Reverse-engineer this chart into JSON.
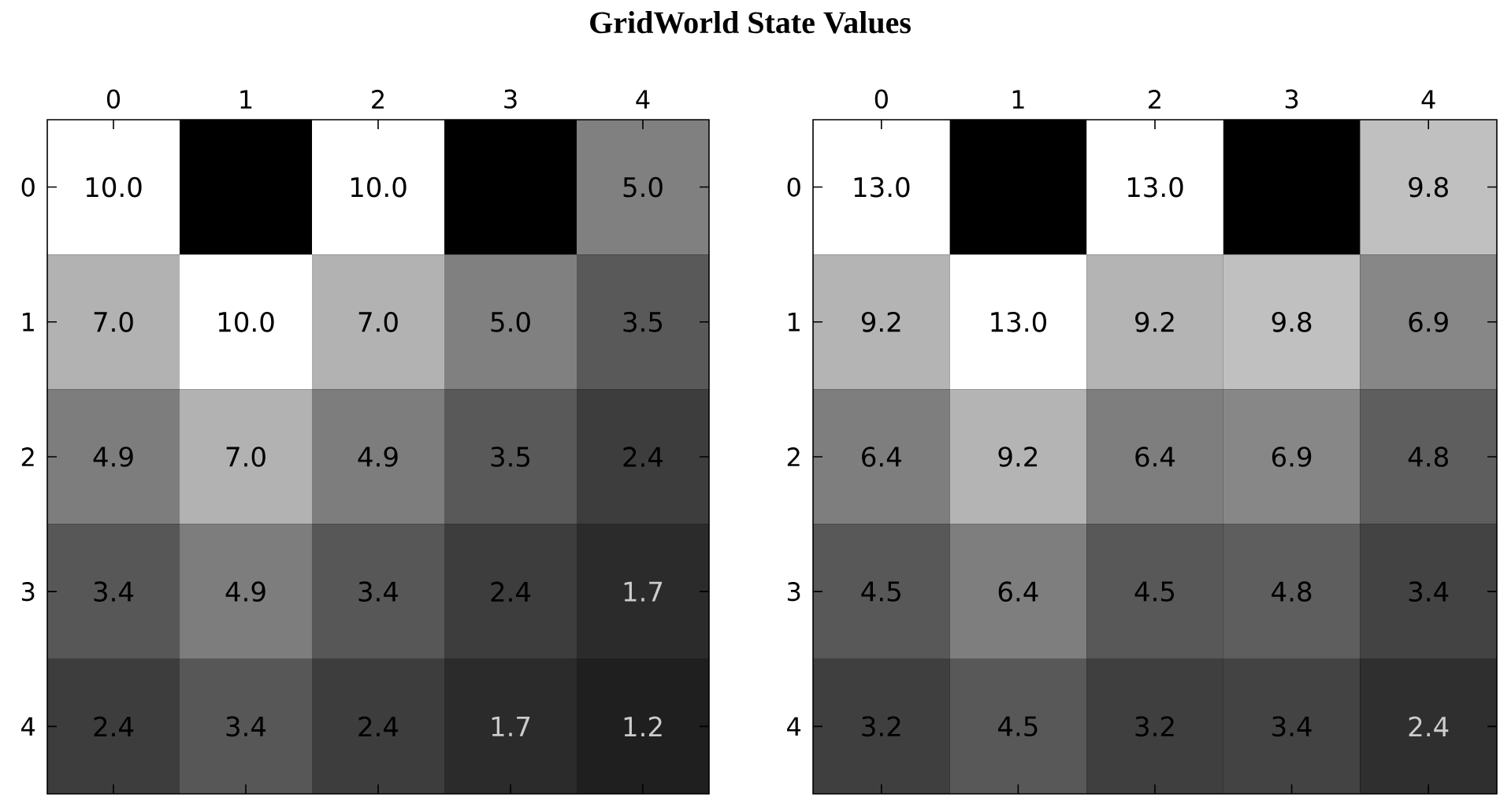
{
  "chart_data": [
    {
      "type": "heatmap",
      "title": "GridWorld State Values",
      "categories": [
        "0",
        "1",
        "2",
        "3",
        "4"
      ],
      "y_categories": [
        "0",
        "1",
        "2",
        "3",
        "4"
      ],
      "cells": [
        [
          10.0,
          null,
          10.0,
          null,
          5.0
        ],
        [
          7.0,
          10.0,
          7.0,
          5.0,
          3.5
        ],
        [
          4.9,
          7.0,
          4.9,
          3.5,
          2.4
        ],
        [
          3.4,
          4.9,
          3.4,
          2.4,
          1.7
        ],
        [
          2.4,
          3.4,
          2.4,
          1.7,
          1.2
        ]
      ],
      "cell_labels": [
        [
          "10.0",
          null,
          "10.0",
          null,
          "5.0"
        ],
        [
          "7.0",
          "10.0",
          "7.0",
          "5.0",
          "3.5"
        ],
        [
          "4.9",
          "7.0",
          "4.9",
          "3.5",
          "2.4"
        ],
        [
          "3.4",
          "4.9",
          "3.4",
          "2.4",
          "1.7"
        ],
        [
          "2.4",
          "3.4",
          "2.4",
          "1.7",
          "1.2"
        ]
      ]
    },
    {
      "type": "heatmap",
      "categories": [
        "0",
        "1",
        "2",
        "3",
        "4"
      ],
      "y_categories": [
        "0",
        "1",
        "2",
        "3",
        "4"
      ],
      "cells": [
        [
          13.0,
          null,
          13.0,
          null,
          9.8
        ],
        [
          9.2,
          13.0,
          9.2,
          9.8,
          6.9
        ],
        [
          6.4,
          9.2,
          6.4,
          6.9,
          4.8
        ],
        [
          4.5,
          6.4,
          4.5,
          4.8,
          3.4
        ],
        [
          3.2,
          4.5,
          3.2,
          3.4,
          2.4
        ]
      ],
      "cell_labels": [
        [
          "13.0",
          null,
          "13.0",
          null,
          "9.8"
        ],
        [
          "9.2",
          "13.0",
          "9.2",
          "9.8",
          "6.9"
        ],
        [
          "6.4",
          "9.2",
          "6.4",
          "6.9",
          "4.8"
        ],
        [
          "4.5",
          "6.4",
          "4.5",
          "4.8",
          "3.4"
        ],
        [
          "3.2",
          "4.5",
          "3.2",
          "3.4",
          "2.4"
        ]
      ]
    }
  ]
}
